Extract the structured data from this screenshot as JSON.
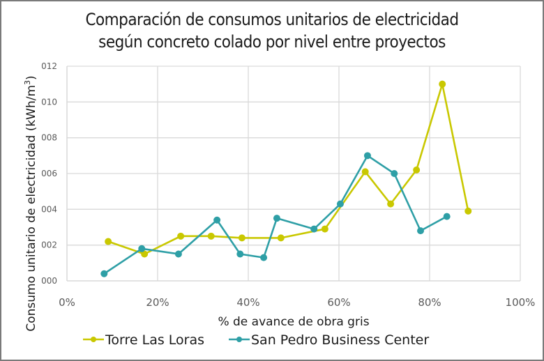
{
  "chart_data": {
    "type": "line",
    "title_lines": [
      "Comparación de consumos unitarios de electricidad",
      "según concreto colado por nivel entre proyectos"
    ],
    "xlabel": "% de avance de obra gris",
    "ylabel": "Consumo unitario de electricidad (kWh/m",
    "ylabel_superscript": "3",
    "ylabel_suffix": ")",
    "xlim": [
      0,
      100
    ],
    "ylim": [
      0,
      0.012
    ],
    "x_ticks": [
      0,
      20,
      40,
      60,
      80,
      100
    ],
    "x_tick_labels": [
      "0%",
      "20%",
      "40%",
      "60%",
      "80%",
      "100%"
    ],
    "y_ticks": [
      0,
      0.002,
      0.004,
      0.006,
      0.008,
      0.01,
      0.012
    ],
    "y_tick_labels": [
      "000",
      "002",
      "004",
      "006",
      "008",
      "010",
      "012"
    ],
    "grid": true,
    "legend_position": "bottom",
    "series": [
      {
        "name": "Torre Las Loras",
        "color": "#C9C800",
        "x": [
          9.1,
          17.1,
          25.1,
          31.8,
          38.6,
          47.2,
          56.9,
          65.8,
          71.4,
          77.1,
          82.8,
          88.5
        ],
        "y": [
          0.0022,
          0.0015,
          0.0025,
          0.0025,
          0.0024,
          0.0024,
          0.0029,
          0.0061,
          0.0043,
          0.0062,
          0.011,
          0.0039
        ]
      },
      {
        "name": "San Pedro Business Center",
        "color": "#2E9FA6",
        "x": [
          8.2,
          16.5,
          24.6,
          33.1,
          38.2,
          43.4,
          46.3,
          54.5,
          60.3,
          66.3,
          72.2,
          78.0,
          83.8
        ],
        "y": [
          0.0004,
          0.0018,
          0.0015,
          0.0034,
          0.0015,
          0.0013,
          0.0035,
          0.0029,
          0.0043,
          0.007,
          0.006,
          0.0028,
          0.0036
        ]
      }
    ]
  }
}
